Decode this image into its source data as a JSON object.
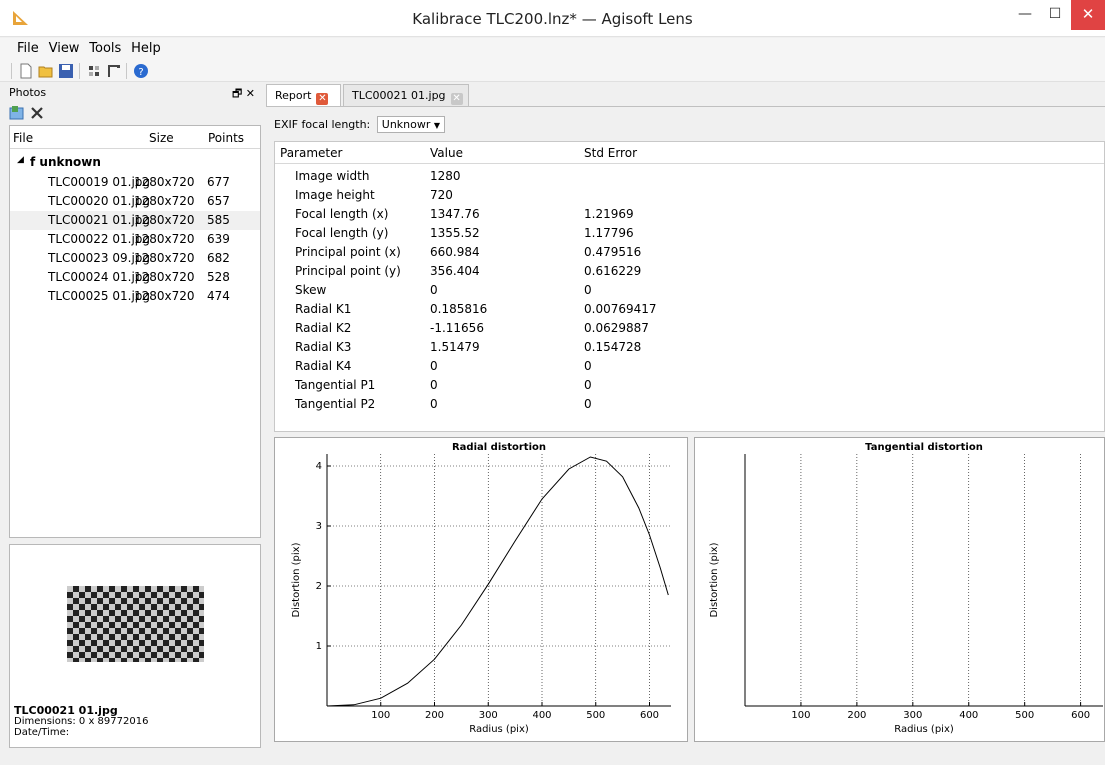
{
  "window": {
    "title": "Kalibrace TLC200.lnz* — Agisoft Lens",
    "minimize": "—",
    "maximize": "☐",
    "close": "✕"
  },
  "menu": [
    "File",
    "View",
    "Tools",
    "Help"
  ],
  "toolbar": {
    "icons": [
      "new-icon",
      "open-icon",
      "save-icon",
      "calibration-pattern-icon",
      "camera-icon",
      "help-icon"
    ]
  },
  "photos_panel": {
    "title": "Photos",
    "dock_buttons": "🗗 ✕",
    "columns": [
      "File",
      "Size",
      "Points"
    ],
    "group": "f unknown",
    "rows": [
      {
        "file": "TLC00019 01.jpg",
        "size": "1280x720",
        "points": "677"
      },
      {
        "file": "TLC00020 01.jpg",
        "size": "1280x720",
        "points": "657"
      },
      {
        "file": "TLC00021 01.jpg",
        "size": "1280x720",
        "points": "585"
      },
      {
        "file": "TLC00022 01.jpg",
        "size": "1280x720",
        "points": "639"
      },
      {
        "file": "TLC00023 09.jpg",
        "size": "1280x720",
        "points": "682"
      },
      {
        "file": "TLC00024 01.jpg",
        "size": "1280x720",
        "points": "528"
      },
      {
        "file": "TLC00025 01.jpg",
        "size": "1280x720",
        "points": "474"
      }
    ],
    "selected_index": 2
  },
  "preview": {
    "filename": "TLC00021 01.jpg",
    "dimensions": "Dimensions: 0 x 89772016",
    "datetime": "Date/Time:"
  },
  "tabs": [
    {
      "label": "Report",
      "active": true
    },
    {
      "label": "TLC00021 01.jpg",
      "active": false
    }
  ],
  "exif": {
    "label": "EXIF focal length:",
    "value": "Unknowr"
  },
  "params_table": {
    "columns": [
      "Parameter",
      "Value",
      "Std Error"
    ],
    "rows": [
      {
        "param": "Image width",
        "value": "1280",
        "err": ""
      },
      {
        "param": "Image height",
        "value": "720",
        "err": ""
      },
      {
        "param": "Focal length (x)",
        "value": "1347.76",
        "err": "1.21969"
      },
      {
        "param": "Focal length (y)",
        "value": "1355.52",
        "err": "1.17796"
      },
      {
        "param": "Principal point (x)",
        "value": "660.984",
        "err": "0.479516"
      },
      {
        "param": "Principal point (y)",
        "value": "356.404",
        "err": "0.616229"
      },
      {
        "param": "Skew",
        "value": "0",
        "err": "0"
      },
      {
        "param": "Radial K1",
        "value": "0.185816",
        "err": "0.00769417"
      },
      {
        "param": "Radial K2",
        "value": "-1.11656",
        "err": "0.0629887"
      },
      {
        "param": "Radial K3",
        "value": "1.51479",
        "err": "0.154728"
      },
      {
        "param": "Radial K4",
        "value": "0",
        "err": "0"
      },
      {
        "param": "Tangential P1",
        "value": "0",
        "err": "0"
      },
      {
        "param": "Tangential P2",
        "value": "0",
        "err": "0"
      }
    ]
  },
  "chart_data": [
    {
      "type": "line",
      "title": "Radial distortion",
      "xlabel": "Radius (pix)",
      "ylabel": "Distortion (pix)",
      "xlim": [
        0,
        640
      ],
      "ylim": [
        0,
        4.2
      ],
      "x_ticks": [
        100,
        200,
        300,
        400,
        500,
        600
      ],
      "y_ticks": [
        1,
        2,
        3,
        4
      ],
      "grid": true,
      "series": [
        {
          "x": [
            0,
            50,
            100,
            150,
            200,
            250,
            300,
            350,
            400,
            450,
            490,
            520,
            550,
            580,
            600,
            620,
            635
          ],
          "y": [
            0,
            0.02,
            0.13,
            0.38,
            0.78,
            1.35,
            2.03,
            2.75,
            3.45,
            3.95,
            4.15,
            4.08,
            3.82,
            3.3,
            2.85,
            2.3,
            1.85
          ]
        }
      ]
    },
    {
      "type": "line",
      "title": "Tangential distortion",
      "xlabel": "Radius (pix)",
      "ylabel": "Distortion (pix)",
      "xlim": [
        0,
        640
      ],
      "x_ticks": [
        100,
        200,
        300,
        400,
        500,
        600
      ],
      "grid": true,
      "series": []
    }
  ]
}
